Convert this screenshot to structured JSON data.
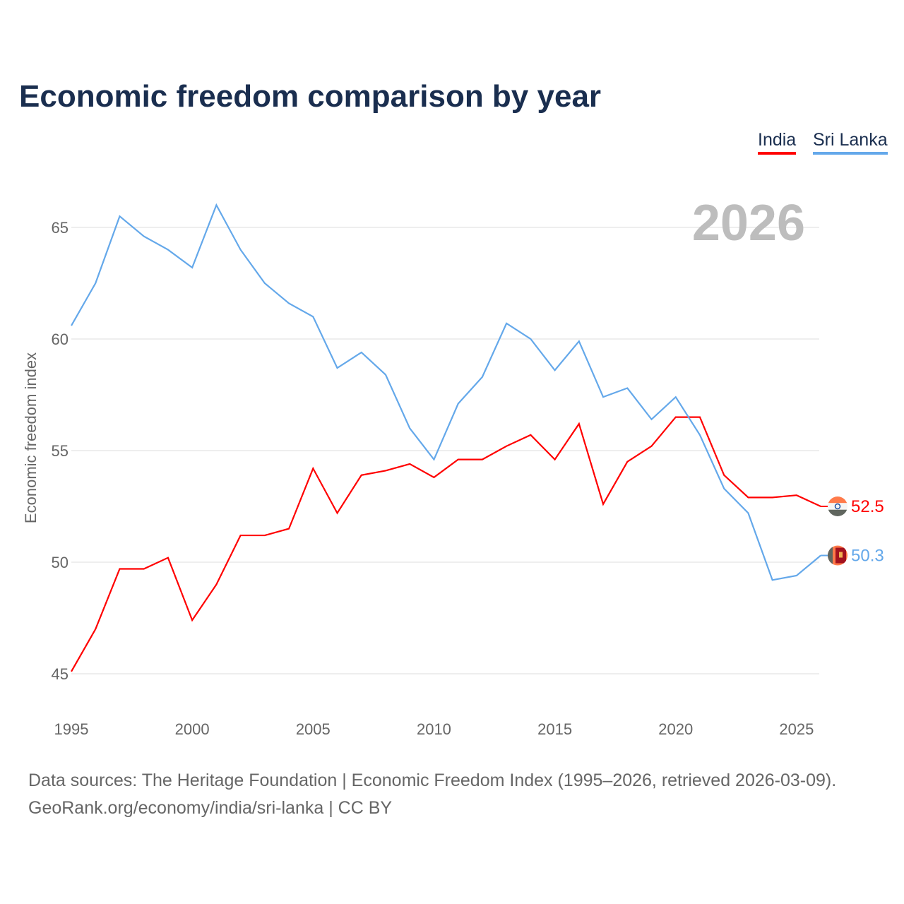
{
  "chart_data": {
    "type": "line",
    "title": "Economic freedom comparison by year",
    "ylabel": "Economic freedom index",
    "xlabel": "",
    "ylim": [
      43.5,
      67
    ],
    "xlim": [
      1995,
      2026
    ],
    "yticks": [
      45,
      50,
      55,
      60,
      65
    ],
    "xticks": [
      1995,
      2000,
      2005,
      2010,
      2015,
      2020,
      2025
    ],
    "year_label": "2026",
    "legend_position": "top-right",
    "x": [
      1995,
      1996,
      1997,
      1998,
      1999,
      2000,
      2001,
      2002,
      2003,
      2004,
      2005,
      2006,
      2007,
      2008,
      2009,
      2010,
      2011,
      2012,
      2013,
      2014,
      2015,
      2016,
      2017,
      2018,
      2019,
      2020,
      2021,
      2022,
      2023,
      2024,
      2025,
      2026
    ],
    "series": [
      {
        "name": "India",
        "color": "#ff0000",
        "end_label": "52.5",
        "flag": "india-flag",
        "values": [
          45.1,
          47.0,
          49.7,
          49.7,
          50.2,
          47.4,
          49.0,
          51.2,
          51.2,
          51.5,
          54.2,
          52.2,
          53.9,
          54.1,
          54.4,
          53.8,
          54.6,
          54.6,
          55.2,
          55.7,
          54.6,
          56.2,
          52.6,
          54.5,
          55.2,
          56.5,
          56.5,
          53.9,
          52.9,
          52.9,
          53.0,
          52.5
        ]
      },
      {
        "name": "Sri Lanka",
        "color": "#64a8ea",
        "end_label": "50.3",
        "flag": "sri-lanka-flag",
        "values": [
          60.6,
          62.5,
          65.5,
          64.6,
          64.0,
          63.2,
          66.0,
          64.0,
          62.5,
          61.6,
          61.0,
          58.7,
          59.4,
          58.4,
          56.0,
          54.6,
          57.1,
          58.3,
          60.7,
          60.0,
          58.6,
          59.9,
          57.4,
          57.8,
          56.4,
          57.4,
          55.7,
          53.3,
          52.2,
          49.2,
          49.4,
          50.3
        ]
      }
    ]
  },
  "footer": {
    "line1": "Data sources: The Heritage Foundation | Economic Freedom Index (1995–2026, retrieved 2026-03-09).",
    "line2": "GeoRank.org/economy/india/sri-lanka | CC BY"
  }
}
